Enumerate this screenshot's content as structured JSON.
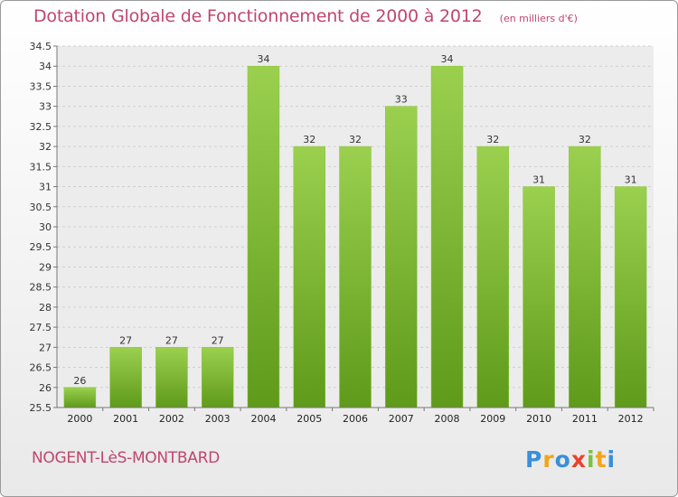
{
  "header": {
    "title": "Dotation Globale de Fonctionnement de 2000 à 2012",
    "unit": "(en milliers d'€)"
  },
  "footer": {
    "commune": "NOGENT-LèS-MONTBARD",
    "logo_text": "Proxiti"
  },
  "colors": {
    "title": "#c0466d",
    "bar_light": "#9bd04f",
    "bar_dark": "#5f9a1a"
  },
  "chart_data": {
    "type": "bar",
    "title": "Dotation Globale de Fonctionnement de 2000 à 2012",
    "subtitle": "(en milliers d'€)",
    "categories": [
      "2000",
      "2001",
      "2002",
      "2003",
      "2004",
      "2005",
      "2006",
      "2007",
      "2008",
      "2009",
      "2010",
      "2011",
      "2012"
    ],
    "values": [
      26,
      27,
      27,
      27,
      34,
      32,
      32,
      33,
      34,
      32,
      31,
      32,
      31
    ],
    "ylim": [
      25.5,
      34.5
    ],
    "yticks": [
      "25.5",
      "26",
      "26.5",
      "27",
      "27.5",
      "28",
      "28.5",
      "29",
      "29.5",
      "30",
      "30.5",
      "31",
      "31.5",
      "32",
      "32.5",
      "33",
      "33.5",
      "34",
      "34.5"
    ],
    "grid": true,
    "legend": "none"
  }
}
